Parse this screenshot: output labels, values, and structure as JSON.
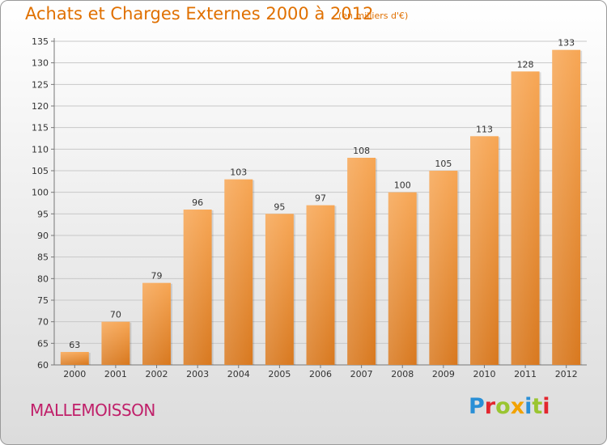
{
  "header": {
    "title": "Achats et Charges Externes 2000 à 2012",
    "subtitle": "(en milliers d'€)"
  },
  "footer": {
    "city": "MALLEMOISSON",
    "brand": [
      {
        "char": "P",
        "color": "#2a8fd6"
      },
      {
        "char": "r",
        "color": "#e3262e"
      },
      {
        "char": "o",
        "color": "#9ac531"
      },
      {
        "char": "x",
        "color": "#f2a200"
      },
      {
        "char": "i",
        "color": "#2a8fd6"
      },
      {
        "char": "t",
        "color": "#9ac531"
      },
      {
        "char": "i",
        "color": "#e3262e"
      }
    ]
  },
  "colors": {
    "bar_light": "#f7a654",
    "bar_dark": "#d8781e",
    "grid": "#c8c8c8",
    "axis": "#777777"
  },
  "chart_data": {
    "type": "bar",
    "title": "Achats et Charges Externes 2000 à 2012",
    "subtitle": "(en milliers d'€)",
    "xlabel": "",
    "ylabel": "",
    "categories": [
      "2000",
      "2001",
      "2002",
      "2003",
      "2004",
      "2005",
      "2006",
      "2007",
      "2008",
      "2009",
      "2010",
      "2011",
      "2012"
    ],
    "values": [
      63,
      70,
      79,
      96,
      103,
      95,
      97,
      108,
      100,
      105,
      113,
      128,
      133
    ],
    "ylim": [
      60,
      135
    ],
    "yticks": [
      60,
      65,
      70,
      75,
      80,
      85,
      90,
      95,
      100,
      105,
      110,
      115,
      120,
      125,
      130,
      135
    ],
    "grid": true,
    "legend": "none"
  }
}
